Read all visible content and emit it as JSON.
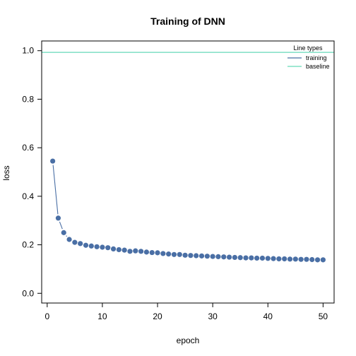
{
  "chart_data": {
    "type": "line",
    "title": "Training of DNN",
    "xlabel": "epoch",
    "ylabel": "loss",
    "xlim": [
      -1,
      52
    ],
    "ylim": [
      -0.04,
      1.04
    ],
    "xticks": [
      0,
      10,
      20,
      30,
      40,
      50
    ],
    "yticks": [
      0.0,
      0.2,
      0.4,
      0.6,
      0.8,
      1.0
    ],
    "xtick_labels": [
      "0",
      "10",
      "20",
      "30",
      "40",
      "50"
    ],
    "ytick_labels": [
      "0.0",
      "0.2",
      "0.4",
      "0.6",
      "0.8",
      "1.0"
    ],
    "grid": false,
    "legend": {
      "title": "Line types",
      "placement": "top-right",
      "entries": [
        {
          "label": "training",
          "color": "#4a6fa5"
        },
        {
          "label": "baseline",
          "color": "#66d9b8"
        }
      ]
    },
    "series": [
      {
        "name": "training",
        "color": "#4a6fa5",
        "marker": "circle",
        "x": [
          1,
          2,
          3,
          4,
          5,
          6,
          7,
          8,
          9,
          10,
          11,
          12,
          13,
          14,
          15,
          16,
          17,
          18,
          19,
          20,
          21,
          22,
          23,
          24,
          25,
          26,
          27,
          28,
          29,
          30,
          31,
          32,
          33,
          34,
          35,
          36,
          37,
          38,
          39,
          40,
          41,
          42,
          43,
          44,
          45,
          46,
          47,
          48,
          49,
          50
        ],
        "y": [
          0.545,
          0.31,
          0.25,
          0.222,
          0.21,
          0.205,
          0.198,
          0.195,
          0.192,
          0.19,
          0.188,
          0.183,
          0.18,
          0.178,
          0.173,
          0.175,
          0.173,
          0.17,
          0.168,
          0.167,
          0.164,
          0.162,
          0.16,
          0.16,
          0.157,
          0.156,
          0.155,
          0.154,
          0.153,
          0.152,
          0.151,
          0.15,
          0.149,
          0.148,
          0.147,
          0.146,
          0.146,
          0.145,
          0.145,
          0.144,
          0.143,
          0.142,
          0.142,
          0.141,
          0.141,
          0.14,
          0.14,
          0.139,
          0.138,
          0.138
        ]
      },
      {
        "name": "baseline",
        "color": "#66d9b8",
        "y_constant": 0.993
      }
    ]
  }
}
